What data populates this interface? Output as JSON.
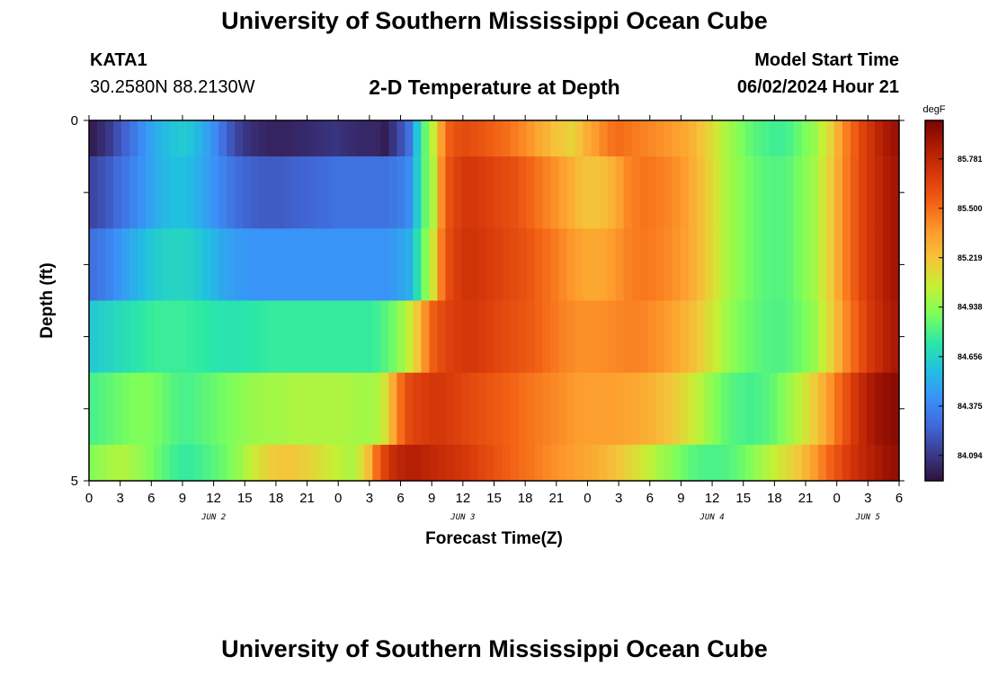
{
  "header": {
    "title": "University of Southern Mississippi Ocean Cube",
    "station_id": "KATA1",
    "coords": "30.2580N  88.2130W",
    "subtitle": "2-D Temperature at Depth",
    "model_start_label": "Model Start Time",
    "model_start_value": "06/02/2024 Hour 21"
  },
  "footer": {
    "title": "University of Southern Mississippi Ocean Cube"
  },
  "chart_data": {
    "type": "heatmap",
    "title": "2-D Temperature at Depth",
    "xlabel": "Forecast Time(Z)",
    "ylabel": "Depth (ft)",
    "ylim": [
      0,
      5
    ],
    "y_tick_labels": [
      {
        "depth": 0,
        "label": "0"
      },
      {
        "depth": 5,
        "label": "5"
      }
    ],
    "x_tick_labels": [
      "0",
      "3",
      "6",
      "9",
      "12",
      "15",
      "18",
      "21",
      "0",
      "3",
      "6",
      "9",
      "12",
      "15",
      "18",
      "21",
      "0",
      "3",
      "6",
      "9",
      "12",
      "15",
      "18",
      "21",
      "0",
      "3",
      "6"
    ],
    "day_labels": [
      {
        "label": "JUN 2",
        "at_tick": 4
      },
      {
        "label": "JUN 3",
        "at_tick": 12
      },
      {
        "label": "JUN 4",
        "at_tick": 20
      },
      {
        "label": "JUN 5",
        "at_tick": 25
      }
    ],
    "hours_total": 78,
    "depth_bands": [
      {
        "from": 0,
        "to": 0.5,
        "values": [
          84.0,
          84.05,
          84.1,
          84.18,
          84.25,
          84.32,
          84.4,
          84.47,
          84.53,
          84.57,
          84.6,
          84.62,
          84.6,
          84.55,
          84.48,
          84.4,
          84.3,
          84.2,
          84.13,
          84.08,
          84.05,
          84.03,
          84.02,
          84.02,
          84.02,
          84.03,
          84.04,
          84.05,
          84.06,
          84.07,
          84.08,
          84.06,
          84.05,
          84.04,
          84.03,
          84.03,
          84.0,
          84.08,
          84.18,
          84.3,
          84.6,
          84.85,
          85.05,
          85.35,
          85.55,
          85.6,
          85.62,
          85.6,
          85.58,
          85.55,
          85.52,
          85.5,
          85.46,
          85.42,
          85.38,
          85.32,
          85.28,
          85.22,
          85.2,
          85.16,
          85.22,
          85.3,
          85.36,
          85.43,
          85.48,
          85.5,
          85.48,
          85.46,
          85.44,
          85.42,
          85.4,
          85.38,
          85.35,
          85.32,
          85.28,
          85.22,
          85.16,
          85.08,
          85.0,
          84.95,
          84.9,
          84.85,
          84.82,
          84.8,
          84.78,
          84.78,
          84.8,
          84.85,
          84.9,
          84.95,
          85.05,
          85.15,
          85.3,
          85.45,
          85.55,
          85.65,
          85.72,
          85.8,
          85.86,
          85.9
        ]
      },
      {
        "from": 0.5,
        "to": 1.5,
        "values": [
          84.15,
          84.18,
          84.22,
          84.27,
          84.32,
          84.37,
          84.42,
          84.47,
          84.52,
          84.56,
          84.58,
          84.58,
          84.56,
          84.52,
          84.47,
          84.42,
          84.37,
          84.32,
          84.28,
          84.25,
          84.23,
          84.22,
          84.22,
          84.22,
          84.23,
          84.24,
          84.25,
          84.26,
          84.27,
          84.28,
          84.3,
          84.3,
          84.3,
          84.3,
          84.3,
          84.3,
          84.3,
          84.32,
          84.35,
          84.4,
          84.62,
          84.85,
          85.0,
          85.4,
          85.6,
          85.66,
          85.7,
          85.7,
          85.68,
          85.66,
          85.64,
          85.62,
          85.6,
          85.56,
          85.52,
          85.48,
          85.44,
          85.4,
          85.35,
          85.3,
          85.25,
          85.22,
          85.22,
          85.24,
          85.28,
          85.35,
          85.42,
          85.46,
          85.48,
          85.47,
          85.45,
          85.43,
          85.4,
          85.36,
          85.3,
          85.24,
          85.17,
          85.09,
          85.01,
          84.96,
          84.92,
          84.88,
          84.85,
          84.83,
          84.82,
          84.82,
          84.84,
          84.88,
          84.93,
          84.98,
          85.08,
          85.18,
          85.32,
          85.46,
          85.56,
          85.65,
          85.72,
          85.78,
          85.84,
          85.88
        ]
      },
      {
        "from": 1.5,
        "to": 2.5,
        "values": [
          84.3,
          84.33,
          84.37,
          84.42,
          84.47,
          84.52,
          84.56,
          84.6,
          84.63,
          84.65,
          84.66,
          84.66,
          84.65,
          84.62,
          84.58,
          84.54,
          84.5,
          84.47,
          84.45,
          84.44,
          84.43,
          84.43,
          84.43,
          84.43,
          84.43,
          84.43,
          84.43,
          84.43,
          84.43,
          84.43,
          84.43,
          84.43,
          84.43,
          84.43,
          84.43,
          84.43,
          84.43,
          84.45,
          84.48,
          84.52,
          84.7,
          84.9,
          85.1,
          85.45,
          85.62,
          85.68,
          85.72,
          85.72,
          85.7,
          85.68,
          85.66,
          85.64,
          85.62,
          85.6,
          85.57,
          85.53,
          85.5,
          85.46,
          85.42,
          85.38,
          85.35,
          85.32,
          85.32,
          85.33,
          85.36,
          85.4,
          85.44,
          85.46,
          85.47,
          85.46,
          85.44,
          85.42,
          85.39,
          85.35,
          85.3,
          85.24,
          85.17,
          85.09,
          85.01,
          84.96,
          84.92,
          84.88,
          84.85,
          84.83,
          84.82,
          84.82,
          84.84,
          84.88,
          84.93,
          84.98,
          85.08,
          85.18,
          85.32,
          85.46,
          85.56,
          85.65,
          85.72,
          85.78,
          85.84,
          85.88
        ]
      },
      {
        "from": 2.5,
        "to": 3.5,
        "values": [
          84.62,
          84.64,
          84.66,
          84.68,
          84.7,
          84.72,
          84.74,
          84.76,
          84.77,
          84.77,
          84.77,
          84.77,
          84.76,
          84.75,
          84.74,
          84.73,
          84.72,
          84.72,
          84.72,
          84.73,
          84.74,
          84.75,
          84.76,
          84.76,
          84.76,
          84.76,
          84.76,
          84.76,
          84.76,
          84.76,
          84.76,
          84.76,
          84.76,
          84.76,
          84.76,
          84.78,
          84.82,
          84.87,
          84.95,
          85.05,
          85.2,
          85.4,
          85.55,
          85.62,
          85.66,
          85.68,
          85.7,
          85.7,
          85.68,
          85.66,
          85.64,
          85.62,
          85.6,
          85.58,
          85.56,
          85.53,
          85.5,
          85.47,
          85.44,
          85.42,
          85.4,
          85.4,
          85.4,
          85.41,
          85.42,
          85.43,
          85.44,
          85.44,
          85.43,
          85.41,
          85.39,
          85.36,
          85.32,
          85.28,
          85.24,
          85.18,
          85.12,
          85.05,
          84.98,
          84.93,
          84.89,
          84.86,
          84.84,
          84.82,
          84.81,
          84.81,
          84.83,
          84.86,
          84.9,
          84.95,
          85.05,
          85.15,
          85.28,
          85.42,
          85.52,
          85.62,
          85.7,
          85.76,
          85.82,
          85.86
        ]
      },
      {
        "from": 3.5,
        "to": 4.5,
        "values": [
          84.8,
          84.82,
          84.84,
          84.86,
          84.88,
          84.9,
          84.91,
          84.9,
          84.88,
          84.85,
          84.82,
          84.8,
          84.8,
          84.82,
          84.84,
          84.86,
          84.88,
          84.9,
          84.92,
          84.94,
          84.96,
          84.97,
          84.98,
          84.98,
          84.99,
          85.0,
          85.0,
          85.0,
          85.0,
          85.0,
          85.0,
          85.0,
          84.99,
          84.98,
          84.98,
          85.0,
          85.1,
          85.3,
          85.5,
          85.62,
          85.66,
          85.68,
          85.7,
          85.7,
          85.68,
          85.66,
          85.64,
          85.62,
          85.6,
          85.58,
          85.56,
          85.54,
          85.52,
          85.5,
          85.48,
          85.46,
          85.44,
          85.42,
          85.4,
          85.38,
          85.36,
          85.35,
          85.35,
          85.35,
          85.35,
          85.34,
          85.33,
          85.32,
          85.3,
          85.28,
          85.25,
          85.22,
          85.18,
          85.13,
          85.08,
          85.02,
          84.96,
          84.9,
          84.85,
          84.82,
          84.8,
          84.79,
          84.8,
          84.82,
          84.85,
          84.9,
          84.96,
          85.02,
          85.1,
          85.18,
          85.28,
          85.38,
          85.5,
          85.6,
          85.7,
          85.78,
          85.85,
          85.9,
          85.93,
          85.95
        ]
      },
      {
        "from": 4.5,
        "to": 5,
        "values": [
          84.92,
          84.95,
          84.98,
          85.0,
          85.0,
          84.97,
          84.94,
          84.9,
          84.86,
          84.82,
          84.78,
          84.76,
          84.76,
          84.78,
          84.8,
          84.83,
          84.86,
          84.9,
          84.95,
          85.02,
          85.08,
          85.14,
          85.18,
          85.2,
          85.21,
          85.2,
          85.18,
          85.15,
          85.12,
          85.08,
          85.05,
          85.02,
          85.0,
          85.1,
          85.25,
          85.5,
          85.65,
          85.75,
          85.8,
          85.82,
          85.82,
          85.8,
          85.78,
          85.76,
          85.74,
          85.72,
          85.7,
          85.67,
          85.64,
          85.61,
          85.58,
          85.55,
          85.52,
          85.5,
          85.48,
          85.45,
          85.42,
          85.4,
          85.38,
          85.36,
          85.34,
          85.32,
          85.3,
          85.27,
          85.24,
          85.2,
          85.16,
          85.12,
          85.08,
          85.03,
          84.98,
          84.94,
          84.9,
          84.86,
          84.83,
          84.81,
          84.8,
          84.8,
          84.81,
          84.83,
          84.86,
          84.9,
          84.95,
          85.0,
          85.05,
          85.1,
          85.15,
          85.2,
          85.28,
          85.36,
          85.45,
          85.53,
          85.6,
          85.67,
          85.73,
          85.78,
          85.82,
          85.86,
          85.9,
          85.92
        ]
      }
    ],
    "colorbar": {
      "unit": "degF",
      "min": 83.95,
      "max": 86.0,
      "ticks": [
        "84.094",
        "84.375",
        "84.656",
        "84.938",
        "85.219",
        "85.500",
        "85.781"
      ],
      "colors": [
        "#30123b",
        "#3b3b8f",
        "#4169d9",
        "#3a92f8",
        "#22c0e0",
        "#2be8a7",
        "#7cfe5b",
        "#c6f034",
        "#f4c53a",
        "#fe9b2d",
        "#f36315",
        "#d83a0a",
        "#b01c03",
        "#7a0403"
      ]
    }
  }
}
